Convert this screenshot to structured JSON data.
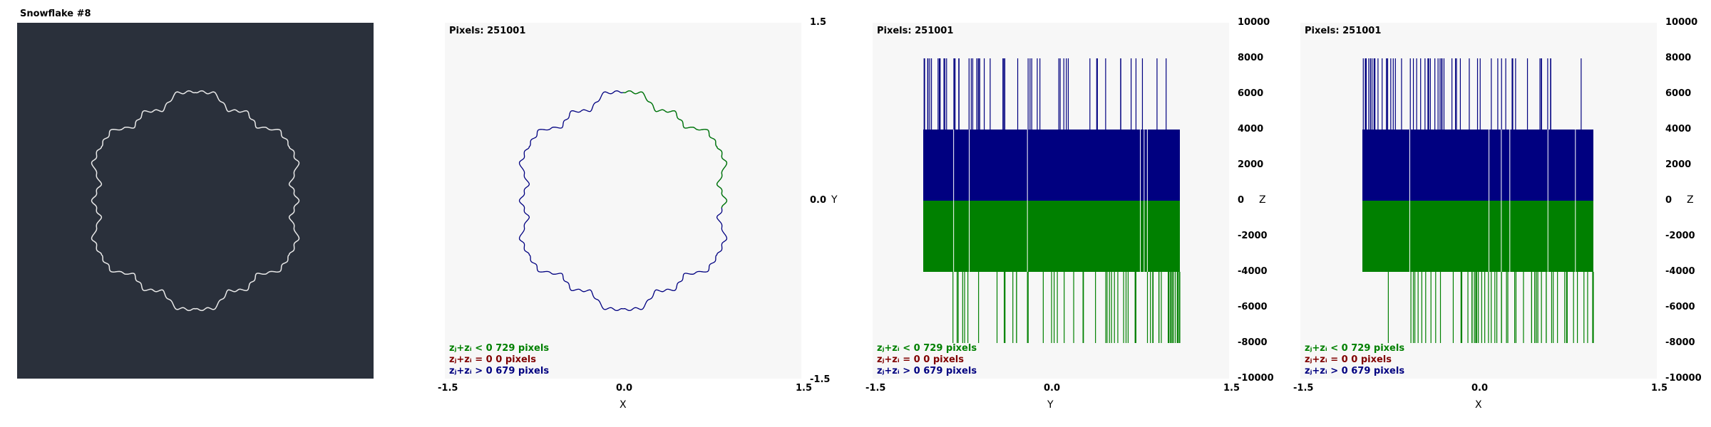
{
  "title": "Snowflake #8",
  "panels": [
    {
      "pixels_label": "Pixels: 251001",
      "x_ticks": [
        "-1.5",
        "0.0",
        "1.5"
      ],
      "x_axis": "X",
      "y_ticks": [
        "1.5",
        "0.0",
        "-1.5"
      ],
      "y_axis": "Y"
    },
    {
      "pixels_label": "Pixels: 251001",
      "x_ticks": [
        "-1.5",
        "0.0",
        "1.5"
      ],
      "x_axis": "Y",
      "y_ticks": [
        "10000",
        "8000",
        "6000",
        "4000",
        "2000",
        "0",
        "-2000",
        "-4000",
        "-6000",
        "-8000",
        "-10000"
      ],
      "y_axis": "Z"
    },
    {
      "pixels_label": "Pixels: 251001",
      "x_ticks": [
        "-1.5",
        "0.0",
        "1.5"
      ],
      "x_axis": "X",
      "y_ticks": [
        "10000",
        "8000",
        "6000",
        "4000",
        "2000",
        "0",
        "-2000",
        "-4000",
        "-6000",
        "-8000",
        "-10000"
      ],
      "y_axis": "Z"
    }
  ],
  "legend": {
    "negative": "zⱼ+zᵢ < 0  729 pixels",
    "zero": "zⱼ+zᵢ = 0  0 pixels",
    "positive": "zⱼ+zᵢ > 0  679 pixels"
  },
  "colors": {
    "dark_bg": "#2a303b",
    "plot_bg": "#f7f7f7",
    "positive": "#000080",
    "negative": "#008000",
    "zero": "#800000"
  }
}
